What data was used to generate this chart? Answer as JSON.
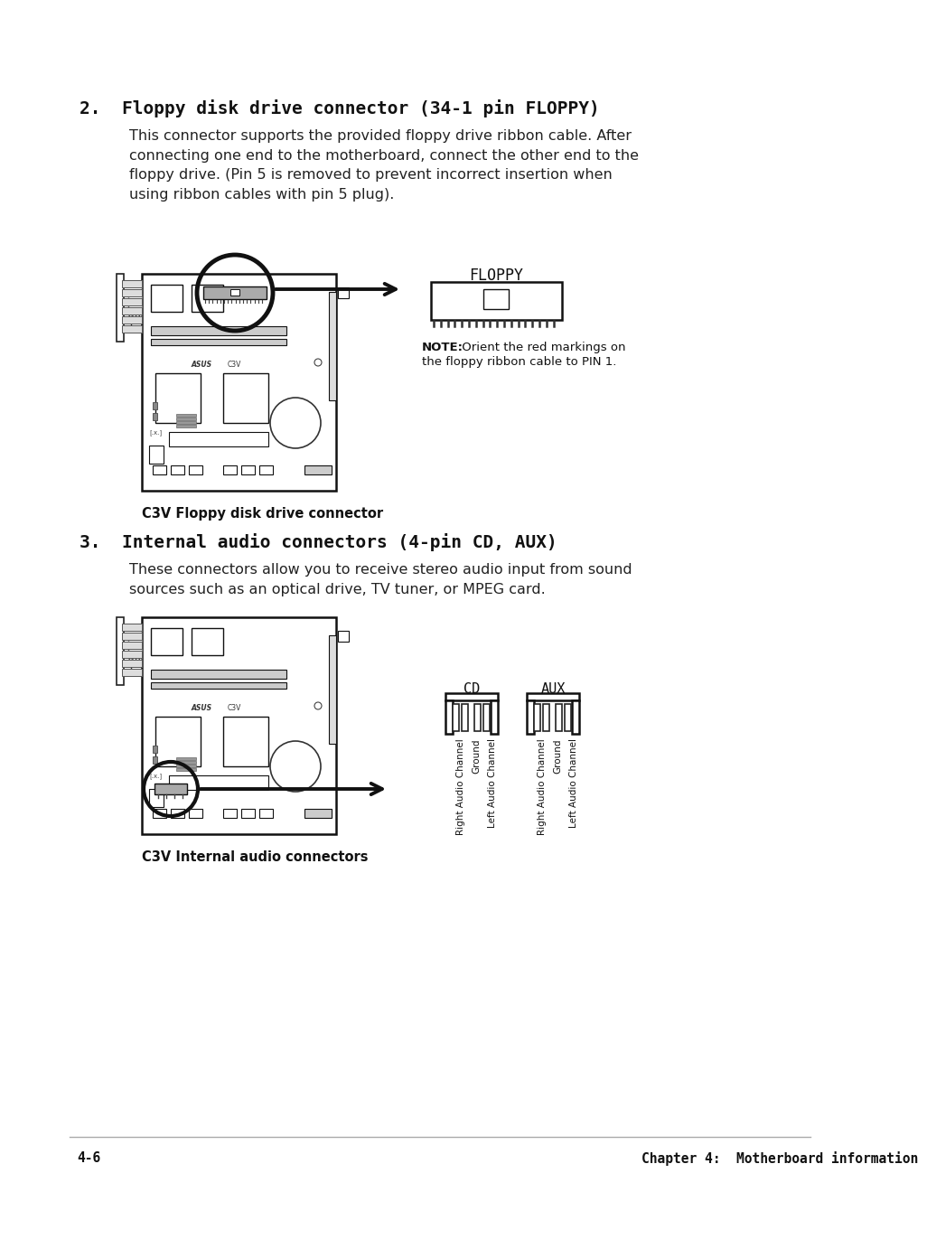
{
  "bg_color": "#ffffff",
  "section2_title": "2.  Floppy disk drive connector (34-1 pin FLOPPY)",
  "section2_body": "This connector supports the provided floppy drive ribbon cable. After\nconnecting one end to the motherboard, connect the other end to the\nfloppy drive. (Pin 5 is removed to prevent incorrect insertion when\nusing ribbon cables with pin 5 plug).",
  "section2_caption": "C3V Floppy disk drive connector",
  "section3_title": "3.  Internal audio connectors (4-pin CD, AUX)",
  "section3_body": "These connectors allow you to receive stereo audio input from sound\nsources such as an optical drive, TV tuner, or MPEG card.",
  "section3_caption": "C3V Internal audio connectors",
  "floppy_label": "FLOPPY",
  "note_bold": "NOTE:",
  "note_text": " Orient the red markings on\nthe floppy ribbon cable to PIN 1.",
  "cd_label": "CD",
  "aux_label": "AUX",
  "cd_pins": [
    "Right Audio Channel",
    "Ground",
    "Left Audio Channel"
  ],
  "aux_pins": [
    "Right Audio Channel",
    "Ground",
    "Left Audio Channel"
  ],
  "footer_left": "4-6",
  "footer_right": "Chapter 4:  Motherboard information",
  "title_fontsize": 14,
  "body_fontsize": 11.5,
  "caption_fontsize": 10.5,
  "note_fontsize": 9.5,
  "footer_fontsize": 10.5
}
